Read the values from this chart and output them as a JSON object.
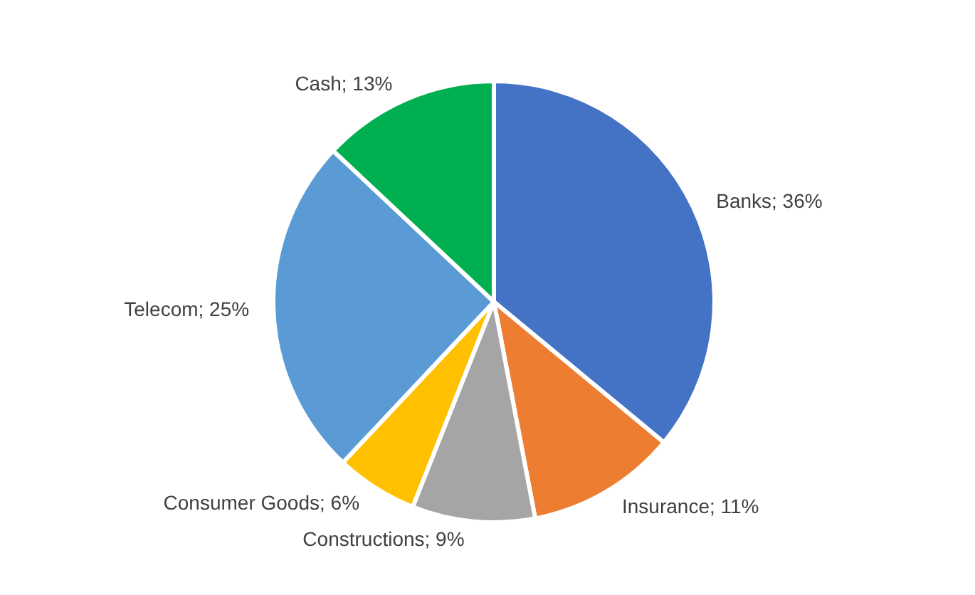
{
  "chart_data": {
    "type": "pie",
    "categories": [
      "Banks",
      "Insurance",
      "Constructions",
      "Consumer Goods",
      "Telecom",
      "Cash"
    ],
    "values": [
      36,
      11,
      9,
      6,
      25,
      13
    ],
    "value_labels": [
      "36%",
      "11%",
      "9%",
      "6%",
      "25%",
      "13%"
    ],
    "colors": [
      "#4472c4",
      "#ed7d31",
      "#a5a5a5",
      "#ffc000",
      "#5b9bd5",
      "#00b050"
    ],
    "legend": false
  }
}
